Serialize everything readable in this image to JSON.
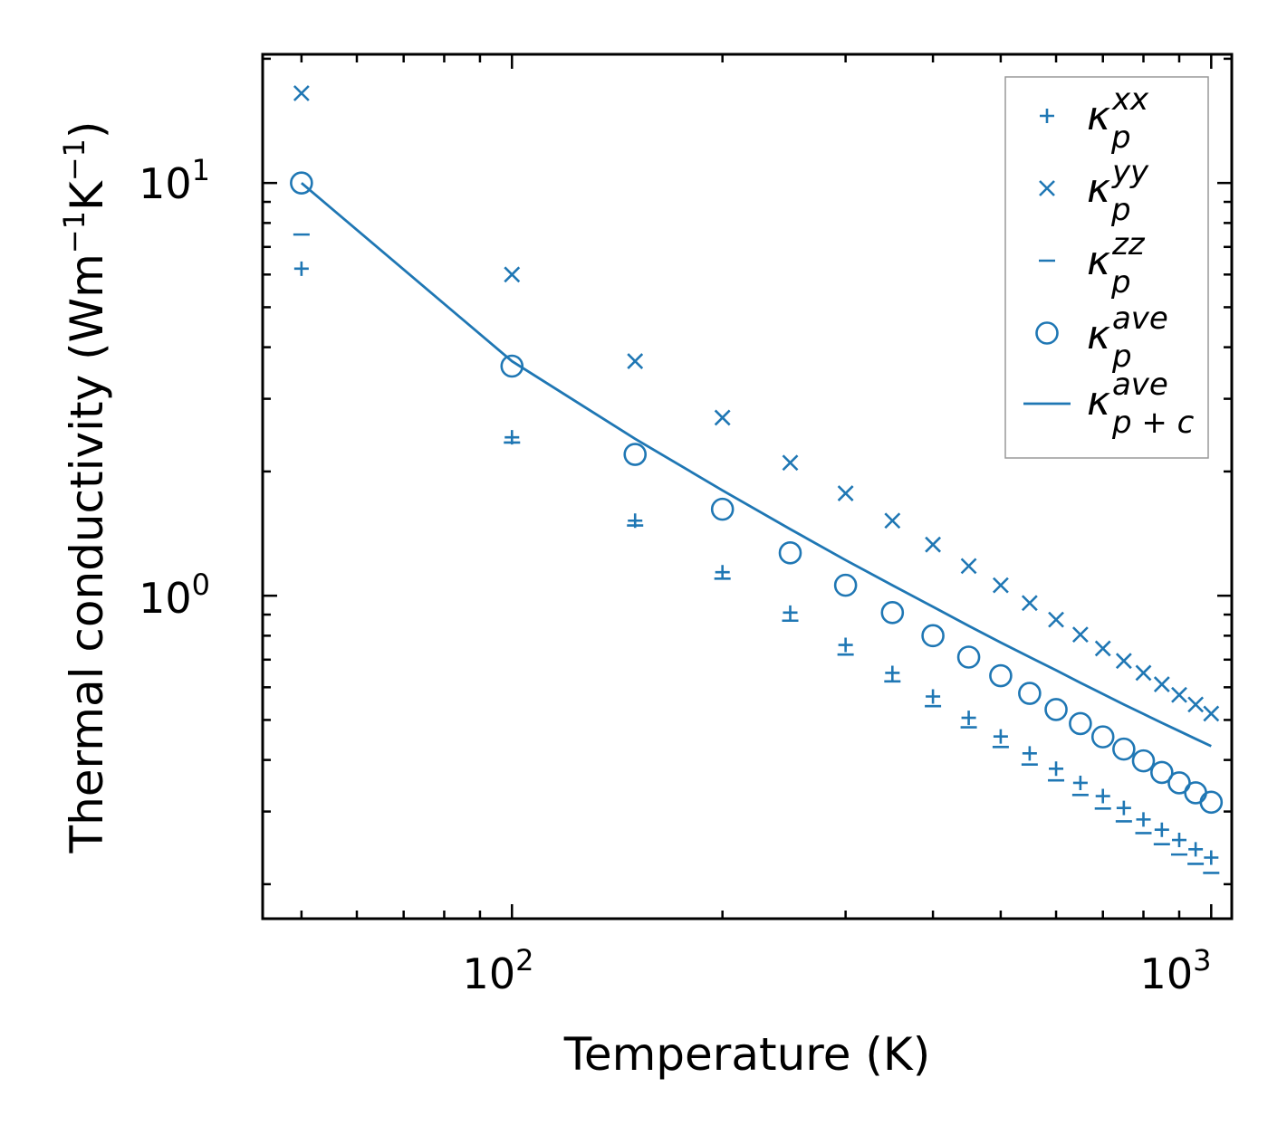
{
  "chart_data": {
    "type": "scatter",
    "xscale": "log",
    "yscale": "log",
    "xlim": [
      44,
      1070
    ],
    "ylim": [
      0.165,
      20.5
    ],
    "xlabel": "Temperature (K)",
    "ylabel": {
      "base": "Thermal conductivity (Wm",
      "exp1": "−1",
      "mid": "K",
      "exp2": "−1",
      "end": ")"
    },
    "x_ticks": [
      {
        "base": "10",
        "exp": "2",
        "value": 100
      },
      {
        "base": "10",
        "exp": "3",
        "value": 1000
      }
    ],
    "y_ticks": [
      {
        "base": "10",
        "exp": "0",
        "value": 1
      },
      {
        "base": "10",
        "exp": "1",
        "value": 10
      }
    ],
    "legend_position": "top-right",
    "color": "#1f77b4",
    "x": [
      50,
      100,
      150,
      200,
      250,
      300,
      350,
      400,
      450,
      500,
      550,
      600,
      650,
      700,
      750,
      800,
      850,
      900,
      950,
      1000
    ],
    "series": [
      {
        "name": "κ",
        "sub": "p",
        "sup": "xx",
        "marker": "plus",
        "values": [
          6.2,
          2.42,
          1.52,
          1.14,
          0.91,
          0.76,
          0.65,
          0.57,
          0.506,
          0.456,
          0.415,
          0.381,
          0.352,
          0.327,
          0.306,
          0.287,
          0.271,
          0.256,
          0.243,
          0.232
        ]
      },
      {
        "name": "κ",
        "sub": "p",
        "sup": "yy",
        "marker": "x",
        "values": [
          16.5,
          6.0,
          3.7,
          2.7,
          2.1,
          1.77,
          1.52,
          1.33,
          1.18,
          1.06,
          0.96,
          0.875,
          0.805,
          0.745,
          0.695,
          0.65,
          0.61,
          0.575,
          0.545,
          0.518
        ]
      },
      {
        "name": "κ",
        "sub": "p",
        "sup": "zz",
        "marker": "hline",
        "values": [
          7.5,
          2.35,
          1.48,
          1.1,
          0.87,
          0.72,
          0.62,
          0.54,
          0.48,
          0.43,
          0.39,
          0.357,
          0.329,
          0.305,
          0.284,
          0.266,
          0.25,
          0.236,
          0.224,
          0.213
        ]
      },
      {
        "name": "κ",
        "sub": "p",
        "sup": "ave",
        "marker": "circle",
        "values": [
          10.0,
          3.6,
          2.2,
          1.62,
          1.27,
          1.06,
          0.91,
          0.8,
          0.71,
          0.64,
          0.58,
          0.53,
          0.49,
          0.455,
          0.425,
          0.398,
          0.373,
          0.352,
          0.333,
          0.316
        ]
      },
      {
        "name": "κ",
        "sub": "p + c",
        "sup": "ave",
        "marker": "line",
        "values": [
          10.0,
          3.7,
          2.4,
          1.8,
          1.45,
          1.22,
          1.06,
          0.94,
          0.845,
          0.77,
          0.71,
          0.66,
          0.615,
          0.578,
          0.545,
          0.517,
          0.492,
          0.47,
          0.45,
          0.432
        ]
      }
    ]
  }
}
